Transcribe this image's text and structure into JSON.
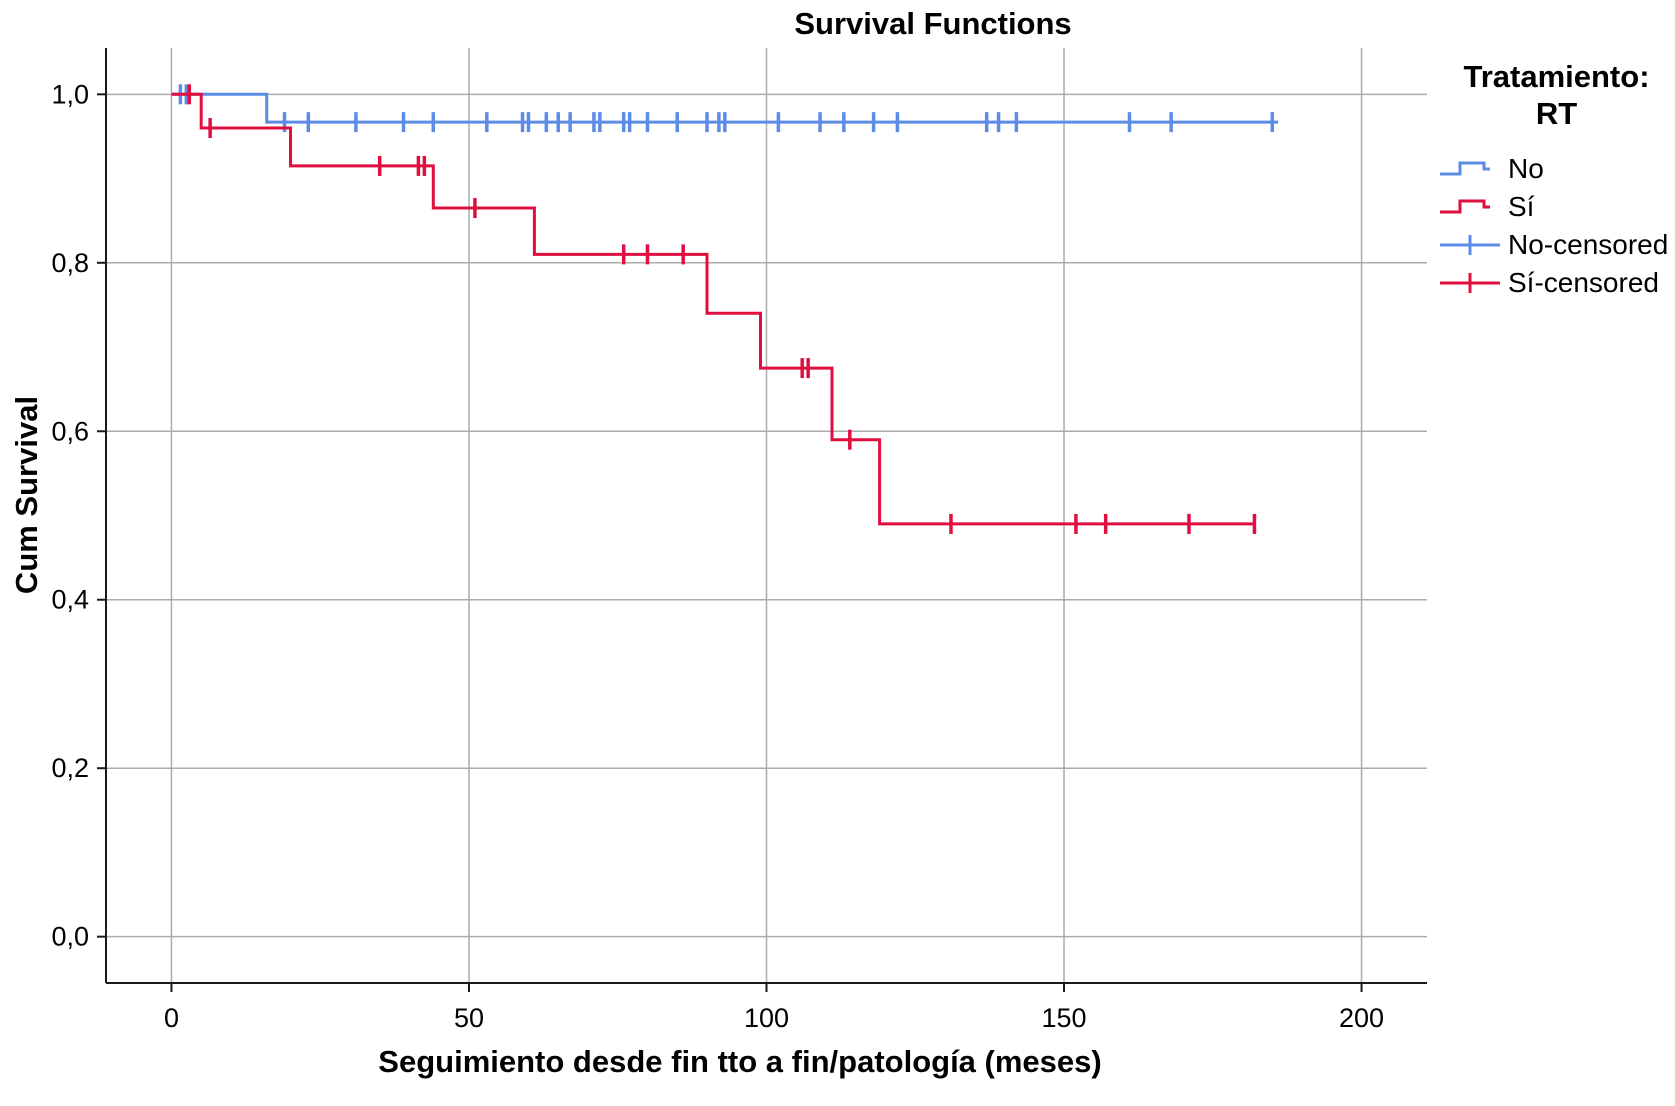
{
  "title": "Survival Functions",
  "axes": {
    "x_label": "Seguimiento desde fin tto a fin/patología (meses)",
    "y_label": "Cum Survival"
  },
  "legend": {
    "title_line1": "Tratamiento:",
    "title_line2": "RT",
    "entries": [
      {
        "label": "No",
        "color": "#5C8BE8",
        "type": "line"
      },
      {
        "label": "Sí",
        "color": "#E00F40",
        "type": "line"
      },
      {
        "label": "No-censored",
        "color": "#5C8BE8",
        "type": "censor"
      },
      {
        "label": "Sí-censored",
        "color": "#E00F40",
        "type": "censor"
      }
    ]
  },
  "chart_data": {
    "type": "line",
    "subtype": "kaplan-meier-step-survival",
    "title": "Survival Functions",
    "xlabel": "Seguimiento desde fin tto a fin/patología (meses)",
    "ylabel": "Cum Survival",
    "legend_title": "Tratamiento: RT",
    "legend_position": "right",
    "grid": true,
    "xlim": [
      -11,
      211
    ],
    "ylim": [
      -0.055,
      1.055
    ],
    "x_tick_values": [
      0,
      50,
      100,
      150,
      200
    ],
    "x_tick_labels": [
      "0",
      "50",
      "100",
      "150",
      "200"
    ],
    "y_tick_values": [
      1.0,
      0.8,
      0.6,
      0.4,
      0.2,
      0.0
    ],
    "y_tick_labels": [
      "1,0",
      "0,8",
      "0,6",
      "0,4",
      "0,2",
      "0,0"
    ],
    "series": [
      {
        "name": "No",
        "color": "#5C8BE8",
        "steps": [
          [
            0,
            1.0
          ],
          [
            16,
            1.0
          ],
          [
            16,
            0.967
          ],
          [
            186,
            0.967
          ]
        ],
        "censored": [
          [
            1.5,
            1.0
          ],
          [
            2.5,
            1.0
          ],
          [
            19,
            0.967
          ],
          [
            23,
            0.967
          ],
          [
            31,
            0.967
          ],
          [
            39,
            0.967
          ],
          [
            44,
            0.967
          ],
          [
            53,
            0.967
          ],
          [
            59,
            0.967
          ],
          [
            60,
            0.967
          ],
          [
            63,
            0.967
          ],
          [
            65,
            0.967
          ],
          [
            67,
            0.967
          ],
          [
            71,
            0.967
          ],
          [
            72,
            0.967
          ],
          [
            76,
            0.967
          ],
          [
            77,
            0.967
          ],
          [
            80,
            0.967
          ],
          [
            85,
            0.967
          ],
          [
            90,
            0.967
          ],
          [
            92,
            0.967
          ],
          [
            93,
            0.967
          ],
          [
            102,
            0.967
          ],
          [
            109,
            0.967
          ],
          [
            113,
            0.967
          ],
          [
            118,
            0.967
          ],
          [
            122,
            0.967
          ],
          [
            137,
            0.967
          ],
          [
            139,
            0.967
          ],
          [
            142,
            0.967
          ],
          [
            161,
            0.967
          ],
          [
            168,
            0.967
          ],
          [
            185,
            0.967
          ]
        ]
      },
      {
        "name": "Sí",
        "color": "#E00F40",
        "steps": [
          [
            0,
            1.0
          ],
          [
            5,
            1.0
          ],
          [
            5,
            0.96
          ],
          [
            20,
            0.96
          ],
          [
            20,
            0.915
          ],
          [
            44,
            0.915
          ],
          [
            44,
            0.865
          ],
          [
            61,
            0.865
          ],
          [
            61,
            0.81
          ],
          [
            90,
            0.81
          ],
          [
            90,
            0.74
          ],
          [
            99,
            0.74
          ],
          [
            99,
            0.675
          ],
          [
            111,
            0.675
          ],
          [
            111,
            0.59
          ],
          [
            119,
            0.59
          ],
          [
            119,
            0.49
          ],
          [
            182,
            0.49
          ]
        ],
        "censored": [
          [
            3,
            1.0
          ],
          [
            6.5,
            0.96
          ],
          [
            35,
            0.915
          ],
          [
            41.5,
            0.915
          ],
          [
            42.5,
            0.915
          ],
          [
            51,
            0.865
          ],
          [
            76,
            0.81
          ],
          [
            80,
            0.81
          ],
          [
            86,
            0.81
          ],
          [
            106,
            0.675
          ],
          [
            107,
            0.675
          ],
          [
            114,
            0.59
          ],
          [
            131,
            0.49
          ],
          [
            152,
            0.49
          ],
          [
            157,
            0.49
          ],
          [
            171,
            0.49
          ],
          [
            182,
            0.49
          ]
        ]
      }
    ]
  }
}
